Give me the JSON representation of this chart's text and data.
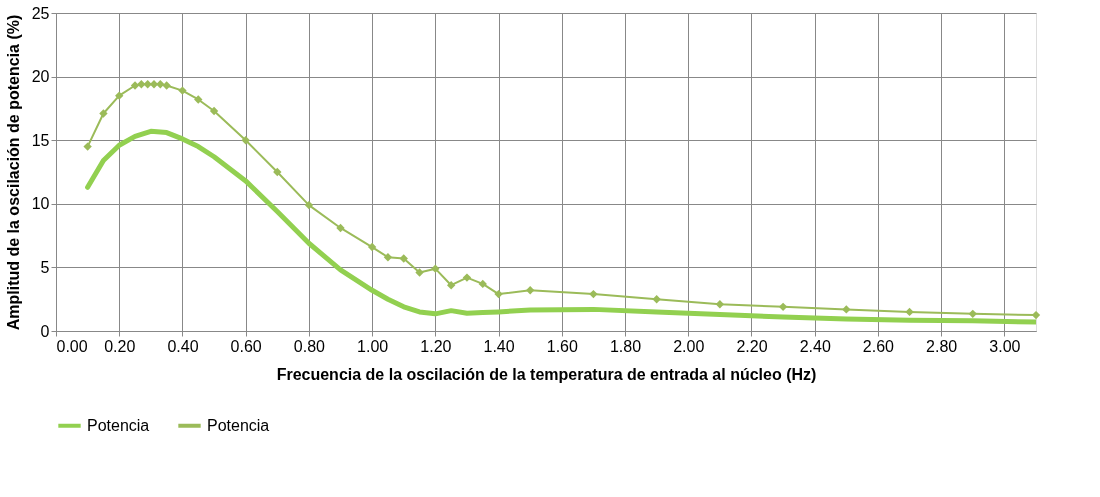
{
  "chart_data": {
    "type": "line",
    "xlabel": "Frecuencia de la oscilación de la temperatura de entrada al núcleo (Hz)",
    "ylabel": "Amplitud de la oscilación de potencia (%)",
    "xlim": [
      0,
      3.1
    ],
    "ylim": [
      0,
      25
    ],
    "xticks": [
      {
        "value": 0,
        "label": "0.00"
      },
      {
        "value": 0.2,
        "label": "0.20"
      },
      {
        "value": 0.4,
        "label": "0.40"
      },
      {
        "value": 0.6,
        "label": "0.60"
      },
      {
        "value": 0.8,
        "label": "0.80"
      },
      {
        "value": 1.0,
        "label": "1.00"
      },
      {
        "value": 1.2,
        "label": "1.20"
      },
      {
        "value": 1.4,
        "label": "1.40"
      },
      {
        "value": 1.6,
        "label": "1.60"
      },
      {
        "value": 1.8,
        "label": "1.80"
      },
      {
        "value": 2.0,
        "label": "2.00"
      },
      {
        "value": 2.2,
        "label": "2.20"
      },
      {
        "value": 2.4,
        "label": "2.40"
      },
      {
        "value": 2.6,
        "label": "2.60"
      },
      {
        "value": 2.8,
        "label": "2.80"
      },
      {
        "value": 3.0,
        "label": "3.00"
      }
    ],
    "yticks": [
      0,
      5,
      10,
      15,
      20,
      25
    ],
    "grid": true,
    "legend": "bottom",
    "series": [
      {
        "name": "Potencia",
        "color": "#92d050",
        "marker": "none",
        "x": [
          0.1,
          0.15,
          0.2,
          0.25,
          0.3,
          0.35,
          0.4,
          0.45,
          0.5,
          0.6,
          0.7,
          0.8,
          0.9,
          1.0,
          1.05,
          1.1,
          1.15,
          1.2,
          1.25,
          1.3,
          1.35,
          1.4,
          1.5,
          1.7,
          1.9,
          2.1,
          2.3,
          2.5,
          2.7,
          2.9,
          3.1
        ],
        "values": [
          11.3,
          13.4,
          14.6,
          15.3,
          15.7,
          15.6,
          15.1,
          14.5,
          13.7,
          11.8,
          9.4,
          6.9,
          4.8,
          3.2,
          2.5,
          1.9,
          1.5,
          1.35,
          1.6,
          1.4,
          1.45,
          1.5,
          1.65,
          1.7,
          1.5,
          1.3,
          1.1,
          0.95,
          0.85,
          0.8,
          0.7
        ]
      },
      {
        "name": "Potencia",
        "color": "#9bbb59",
        "marker": "diamond",
        "x": [
          0.1,
          0.15,
          0.2,
          0.25,
          0.27,
          0.29,
          0.31,
          0.33,
          0.35,
          0.4,
          0.45,
          0.5,
          0.6,
          0.7,
          0.8,
          0.9,
          1.0,
          1.05,
          1.1,
          1.15,
          1.2,
          1.25,
          1.3,
          1.35,
          1.4,
          1.5,
          1.7,
          1.9,
          2.1,
          2.3,
          2.5,
          2.7,
          2.9,
          3.1
        ],
        "values": [
          14.5,
          17.1,
          18.5,
          19.3,
          19.4,
          19.4,
          19.4,
          19.4,
          19.3,
          18.9,
          18.2,
          17.3,
          15.0,
          12.5,
          9.9,
          8.1,
          6.6,
          5.8,
          5.7,
          4.6,
          4.9,
          3.6,
          4.2,
          3.7,
          2.9,
          3.2,
          2.9,
          2.5,
          2.1,
          1.9,
          1.7,
          1.5,
          1.35,
          1.25
        ]
      }
    ]
  }
}
